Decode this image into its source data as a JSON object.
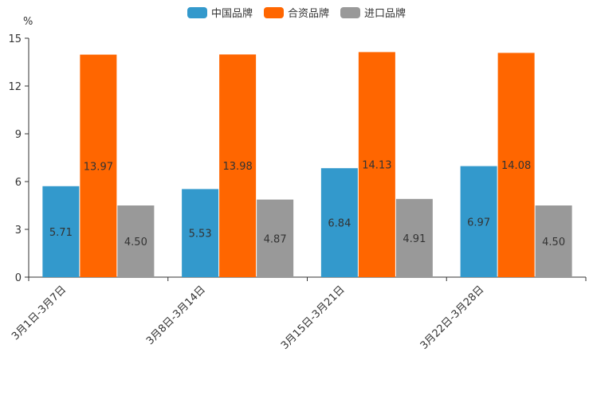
{
  "chart_data": {
    "type": "bar",
    "title": "",
    "ylabel": "%",
    "xlabel": "",
    "ylim": [
      0,
      15
    ],
    "yticks": [
      0,
      3,
      6,
      9,
      12,
      15
    ],
    "categories": [
      "3月1日-3月7日",
      "3月8日-3月14日",
      "3月15日-3月21日",
      "3月22日-3月28日"
    ],
    "series": [
      {
        "name": "中国品牌",
        "color": "#3399cc",
        "values": [
          5.71,
          5.53,
          6.84,
          6.97
        ],
        "labels": [
          "5.71",
          "5.53",
          "6.84",
          "6.97"
        ]
      },
      {
        "name": "合资品牌",
        "color": "#ff6600",
        "values": [
          13.97,
          13.98,
          14.13,
          14.08
        ],
        "labels": [
          "13.97",
          "13.98",
          "14.13",
          "14.08"
        ]
      },
      {
        "name": "进口品牌",
        "color": "#999999",
        "values": [
          4.5,
          4.87,
          4.91,
          4.5
        ],
        "labels": [
          "4.50",
          "4.87",
          "4.91",
          "4.50"
        ]
      }
    ],
    "legend_position": "top-center"
  }
}
